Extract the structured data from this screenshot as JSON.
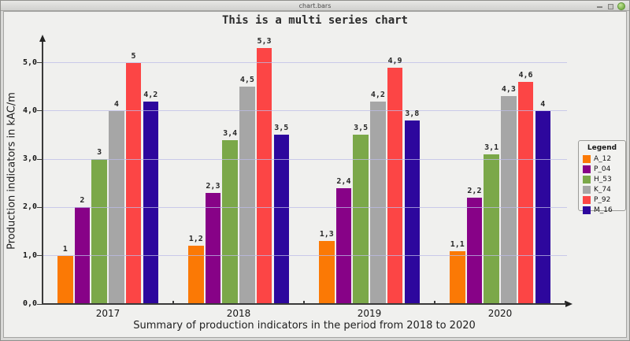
{
  "window": {
    "title": "chart.bars",
    "controls": [
      {
        "name": "minimize"
      },
      {
        "name": "maximize"
      },
      {
        "name": "close"
      }
    ]
  },
  "colors": {
    "client_background": "#f0f0ee",
    "grid": "#c9c9e9",
    "axis": "#3a3a3a",
    "close_button": "#7ab14a"
  },
  "chart_data": {
    "type": "bar",
    "title": "This is a multi series chart",
    "xlabel": "Summary of production indicators in the period from 2018 to 2020",
    "ylabel": "Production indicators in kAC/m",
    "categories": [
      "2017",
      "2018",
      "2019",
      "2020"
    ],
    "series": [
      {
        "name": "A_12",
        "color": "#fb7905",
        "values": [
          1,
          1.2,
          1.3,
          1.1
        ]
      },
      {
        "name": "P_04",
        "color": "#870287",
        "values": [
          2,
          2.3,
          2.4,
          2.2
        ]
      },
      {
        "name": "H_53",
        "color": "#7ba849",
        "values": [
          3,
          3.4,
          3.5,
          3.1
        ]
      },
      {
        "name": "K_74",
        "color": "#a6a6a6",
        "values": [
          4,
          4.5,
          4.2,
          4.3
        ]
      },
      {
        "name": "P_92",
        "color": "#fc4545",
        "values": [
          5,
          5.3,
          4.9,
          4.6
        ]
      },
      {
        "name": "M_16",
        "color": "#2d079d",
        "values": [
          4.2,
          3.5,
          3.8,
          4
        ]
      }
    ],
    "yticks": [
      0,
      1,
      2,
      3,
      4,
      5
    ],
    "ytick_labels": [
      "0,0",
      "1,0",
      "2,0",
      "3,0",
      "4,0",
      "5,0"
    ],
    "ylim": [
      0,
      5.5
    ],
    "grid": true,
    "decimal_separator": ",",
    "legend": {
      "title": "Legend",
      "position": "right"
    }
  }
}
